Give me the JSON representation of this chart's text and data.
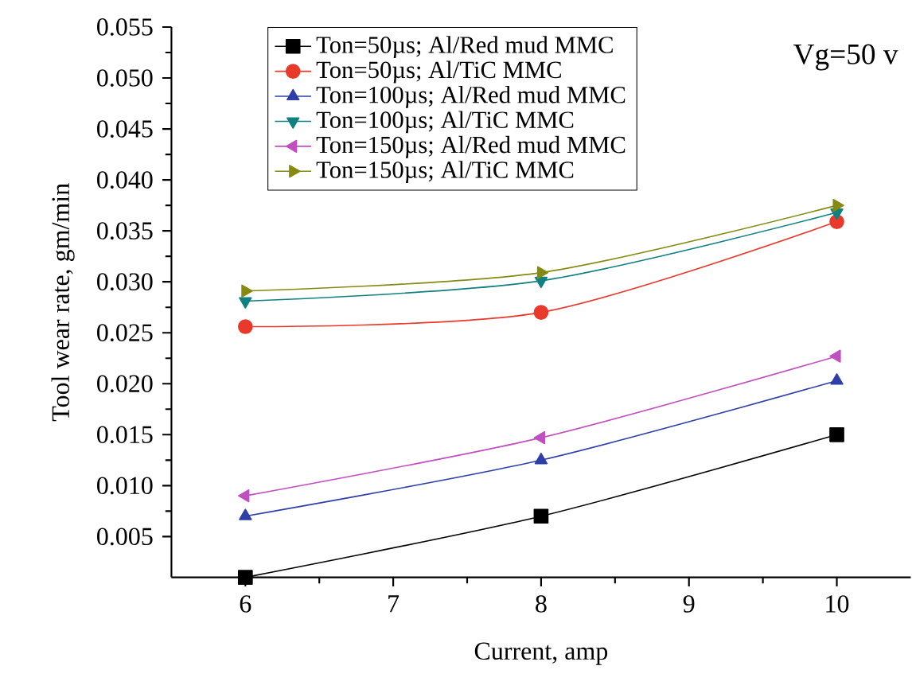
{
  "chart_data": {
    "type": "line",
    "xlabel": "Current, amp",
    "ylabel": "Tool wear rate, gm/min",
    "annotations": [
      "Vg=50 v"
    ],
    "x": [
      6,
      8,
      10
    ],
    "series": [
      {
        "name": "Ton=50µs; Al/Red mud MMC",
        "color": "#000000",
        "marker": "square",
        "values": [
          0.001,
          0.007,
          0.015
        ]
      },
      {
        "name": "Ton=50µs; Al/TiC MMC",
        "color": "#e8392b",
        "marker": "circle",
        "values": [
          0.0256,
          0.027,
          0.0359
        ]
      },
      {
        "name": "Ton=100µs; Al/Red mud MMC",
        "color": "#2e3fa8",
        "marker": "triangle",
        "values": [
          0.007,
          0.0125,
          0.0203
        ]
      },
      {
        "name": "Ton=100µs; Al/TiC MMC",
        "color": "#108080",
        "marker": "triangle-down",
        "values": [
          0.0281,
          0.0301,
          0.0368
        ]
      },
      {
        "name": "Ton=150µs; Al/Red mud MMC",
        "color": "#c04fc0",
        "marker": "triangle-left",
        "values": [
          0.009,
          0.0147,
          0.0227
        ]
      },
      {
        "name": "Ton=150µs; Al/TiC MMC",
        "color": "#858a10",
        "marker": "triangle-right",
        "values": [
          0.0291,
          0.0309,
          0.0375
        ]
      }
    ],
    "xlim": [
      5.5,
      10.5
    ],
    "xticks": [
      6,
      7,
      8,
      9,
      10
    ],
    "ylim": [
      0.001,
      0.055
    ],
    "yticks": [
      0.005,
      {
        "value": 0.01,
        "label": "0.010"
      },
      0.015,
      {
        "value": 0.02,
        "label": "0.020"
      },
      0.025,
      {
        "value": 0.03,
        "label": "0.030"
      },
      0.035,
      {
        "value": 0.04,
        "label": "0.040"
      },
      0.045,
      {
        "value": 0.05,
        "label": "0.050"
      },
      0.055
    ],
    "legend": "top",
    "grid": false,
    "line_style": "solid"
  }
}
